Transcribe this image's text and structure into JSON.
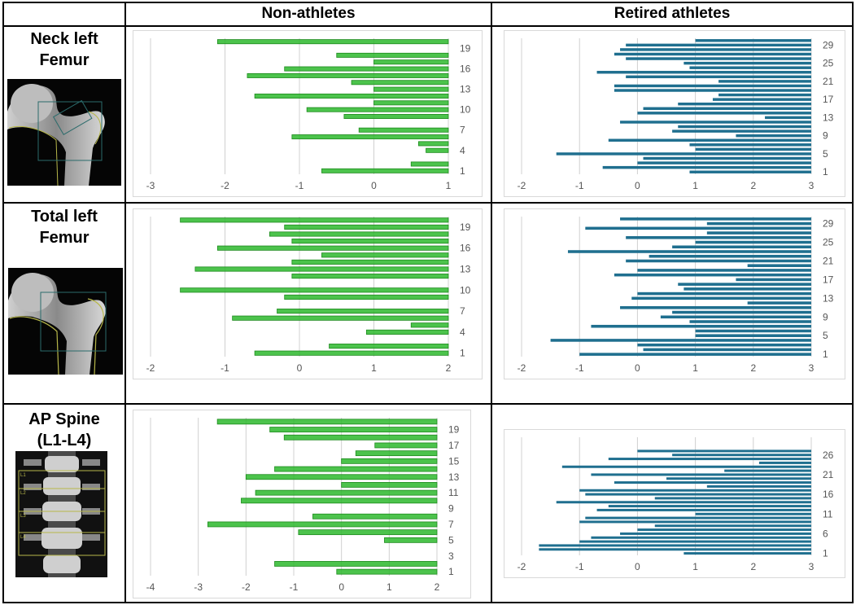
{
  "headers": {
    "col1": "Non-athletes",
    "col2": "Retired athletes"
  },
  "row_labels": {
    "neck": [
      "Neck left",
      "Femur"
    ],
    "total": [
      "Total left",
      "Femur"
    ],
    "spine": [
      "AP Spine",
      "(L1-L4)"
    ]
  },
  "scan_labels": [
    "L1",
    "L2",
    "L3",
    "L4"
  ],
  "colors": {
    "green_fill": "#2db82d",
    "green_edge": "#1d8a1d",
    "blue": "#1f6f8f",
    "grid": "#d0d0d0",
    "tick_text": "#555555"
  },
  "chart_data": [
    {
      "id": "neck-nonathletes",
      "type": "bar",
      "orientation": "horizontal",
      "style": "green",
      "xlim": [
        -3,
        1
      ],
      "xticks": [
        -3,
        -2,
        -1,
        0,
        1
      ],
      "categories": [
        1,
        2,
        3,
        4,
        5,
        6,
        7,
        8,
        9,
        10,
        11,
        12,
        13,
        14,
        15,
        16,
        17,
        18,
        19,
        20
      ],
      "category_labels": [
        "1",
        "4",
        "7",
        "10",
        "13",
        "16",
        "19"
      ],
      "values": [
        -0.7,
        0.5,
        null,
        0.7,
        0.6,
        -1.1,
        -0.2,
        null,
        -0.4,
        -0.9,
        0,
        -1.6,
        0,
        -0.3,
        -1.7,
        -1.2,
        0,
        -0.5,
        null,
        -2.1
      ]
    },
    {
      "id": "neck-athletes",
      "type": "bar",
      "orientation": "horizontal",
      "style": "blue",
      "xlim": [
        -2,
        3
      ],
      "xticks": [
        -2,
        -1,
        0,
        1,
        2,
        3
      ],
      "categories": [
        1,
        2,
        3,
        4,
        5,
        6,
        7,
        8,
        9,
        10,
        11,
        12,
        13,
        14,
        15,
        16,
        17,
        18,
        19,
        20,
        21,
        22,
        23,
        24,
        25,
        26,
        27,
        28,
        29,
        30
      ],
      "category_labels": [
        "1",
        "5",
        "9",
        "13",
        "17",
        "21",
        "25",
        "29"
      ],
      "values": [
        0.9,
        -0.6,
        0,
        0.1,
        -1.4,
        1,
        0.9,
        -0.5,
        1.7,
        0.6,
        0.7,
        -0.3,
        2.2,
        0,
        0.1,
        0.7,
        1.3,
        1.4,
        -0.4,
        -0.4,
        1.4,
        -0.2,
        -0.7,
        0.9,
        0.8,
        -0.2,
        -0.4,
        -0.3,
        -0.2,
        1.0
      ]
    },
    {
      "id": "total-nonathletes",
      "type": "bar",
      "orientation": "horizontal",
      "style": "green",
      "xlim": [
        -2,
        2
      ],
      "xticks": [
        -2,
        -1,
        0,
        1,
        2
      ],
      "categories": [
        1,
        2,
        3,
        4,
        5,
        6,
        7,
        8,
        9,
        10,
        11,
        12,
        13,
        14,
        15,
        16,
        17,
        18,
        19,
        20
      ],
      "category_labels": [
        "1",
        "4",
        "7",
        "10",
        "13",
        "16",
        "19"
      ],
      "values": [
        -0.6,
        0.4,
        null,
        0.9,
        1.5,
        -0.9,
        -0.3,
        null,
        -0.2,
        -1.6,
        null,
        -0.1,
        -1.4,
        -0.1,
        0.3,
        -1.1,
        -0.1,
        -0.4,
        -0.2,
        -1.6
      ]
    },
    {
      "id": "total-athletes",
      "type": "bar",
      "orientation": "horizontal",
      "style": "blue",
      "xlim": [
        -2,
        3
      ],
      "xticks": [
        -2,
        -1,
        0,
        1,
        2,
        3
      ],
      "categories": [
        1,
        2,
        3,
        4,
        5,
        6,
        7,
        8,
        9,
        10,
        11,
        12,
        13,
        14,
        15,
        16,
        17,
        18,
        19,
        20,
        21,
        22,
        23,
        24,
        25,
        26,
        27,
        28,
        29,
        30
      ],
      "category_labels": [
        "1",
        "5",
        "9",
        "13",
        "17",
        "21",
        "25",
        "29"
      ],
      "values": [
        -1,
        0.1,
        0,
        -1.5,
        1,
        1,
        -0.8,
        0.9,
        0.4,
        0.6,
        -0.3,
        1.9,
        -0.1,
        0,
        0.8,
        0.7,
        1.7,
        -0.4,
        0,
        1.9,
        -0.2,
        0.2,
        -1.2,
        0.6,
        1,
        -0.2,
        1.2,
        -0.9,
        1.2,
        -0.3
      ]
    },
    {
      "id": "spine-nonathletes",
      "type": "bar",
      "orientation": "horizontal",
      "style": "green",
      "xlim": [
        -4,
        2
      ],
      "xticks": [
        -4,
        -3,
        -2,
        -1,
        0,
        1,
        2
      ],
      "categories": [
        1,
        2,
        3,
        4,
        5,
        6,
        7,
        8,
        9,
        10,
        11,
        12,
        13,
        14,
        15,
        16,
        17,
        18,
        19,
        20
      ],
      "category_labels": [
        "1",
        "3",
        "5",
        "7",
        "9",
        "11",
        "13",
        "15",
        "17",
        "19"
      ],
      "values": [
        -0.1,
        -1.4,
        null,
        null,
        0.9,
        -0.9,
        -2.8,
        -0.6,
        null,
        -2.1,
        -1.8,
        0,
        -2.0,
        -1.4,
        0,
        0.3,
        0.7,
        -1.2,
        -1.5,
        -2.6
      ]
    },
    {
      "id": "spine-athletes",
      "type": "bar",
      "orientation": "horizontal",
      "style": "blue",
      "xlim": [
        -2,
        3
      ],
      "xticks": [
        -2,
        -1,
        0,
        1,
        2,
        3
      ],
      "categories": [
        1,
        2,
        3,
        4,
        5,
        6,
        7,
        8,
        9,
        10,
        11,
        12,
        13,
        14,
        15,
        16,
        17,
        18,
        19,
        20,
        21,
        22,
        23,
        24,
        25,
        26,
        27,
        28,
        29,
        30
      ],
      "category_labels": [
        "1",
        "6",
        "11",
        "16",
        "21",
        "26"
      ],
      "values": [
        0.8,
        -1.7,
        -1.7,
        -1,
        -0.8,
        -0.3,
        0,
        0.3,
        -1,
        -0.9,
        1,
        -0.7,
        -0.5,
        -1.4,
        0.3,
        -0.9,
        -1.0,
        1.2,
        -0.4,
        0.5,
        -0.8,
        1.5,
        -1.3,
        2.1,
        -0.5,
        0.6,
        0,
        null,
        null,
        null
      ]
    }
  ]
}
